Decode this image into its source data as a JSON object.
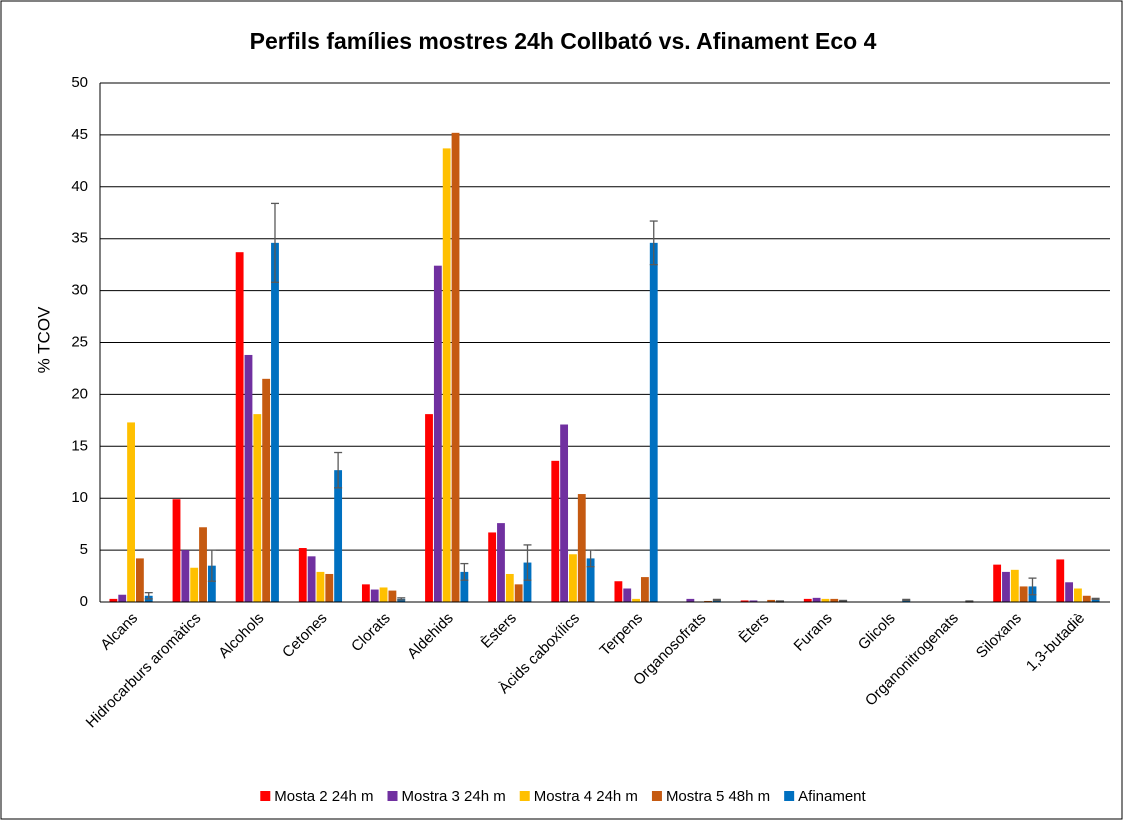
{
  "chart_data": {
    "type": "bar",
    "title": "Perfils famílies mostres 24h Collbató vs. Afinament Eco 4",
    "y_label": "% TCOV",
    "categories": [
      "Alcans",
      "Hidrocarburs aromàtics",
      "Alcohols",
      "Cetones",
      "Clorats",
      "Aldehids",
      "Èsters",
      "Àcids caboxílics",
      "Terpens",
      "Organosofrats",
      "Èters",
      "Furans",
      "Glicols",
      "Organonitrogenats",
      "Siloxans",
      "1,3-butadiè"
    ],
    "series": [
      {
        "name": "Mosta 2 24h m",
        "color": "#ff0000",
        "values": [
          0.3,
          9.9,
          33.7,
          5.2,
          1.7,
          18.1,
          6.7,
          13.6,
          2.0,
          0,
          0.15,
          0.3,
          0,
          0,
          3.6,
          4.1
        ]
      },
      {
        "name": "Mostra 3 24h m",
        "color": "#7030a0",
        "values": [
          0.7,
          5.0,
          23.8,
          4.4,
          1.2,
          32.4,
          7.6,
          17.1,
          1.3,
          0.3,
          0.15,
          0.4,
          0,
          0,
          2.9,
          1.9
        ]
      },
      {
        "name": "Mostra 4 24h m",
        "color": "#ffc000",
        "values": [
          17.3,
          3.3,
          18.1,
          2.9,
          1.4,
          43.7,
          2.7,
          4.6,
          0.3,
          0.05,
          0.05,
          0.3,
          0,
          0,
          3.1,
          1.3
        ]
      },
      {
        "name": "Mostra 5 48h m",
        "color": "#c55a11",
        "values": [
          4.2,
          7.2,
          21.5,
          2.7,
          1.1,
          45.2,
          1.7,
          10.4,
          2.4,
          0.1,
          0.2,
          0.3,
          0,
          0,
          1.5,
          0.6
        ]
      },
      {
        "name": "Afinament",
        "color": "#0070c0",
        "values": [
          0.6,
          3.5,
          34.6,
          12.7,
          0.3,
          2.9,
          3.8,
          4.2,
          34.6,
          0.2,
          0.05,
          0.1,
          0.2,
          0.05,
          1.5,
          0.3
        ],
        "errors": [
          0.3,
          1.5,
          3.8,
          1.7,
          0.1,
          0.8,
          1.7,
          0.8,
          2.1,
          0.05,
          0.05,
          0.05,
          0.05,
          0.05,
          0.8,
          0.05
        ]
      }
    ],
    "ylim": [
      0,
      50
    ],
    "yticks": [
      0,
      5,
      10,
      15,
      20,
      25,
      30,
      35,
      40,
      45,
      50
    ],
    "grid": true,
    "legend": "bottom"
  }
}
